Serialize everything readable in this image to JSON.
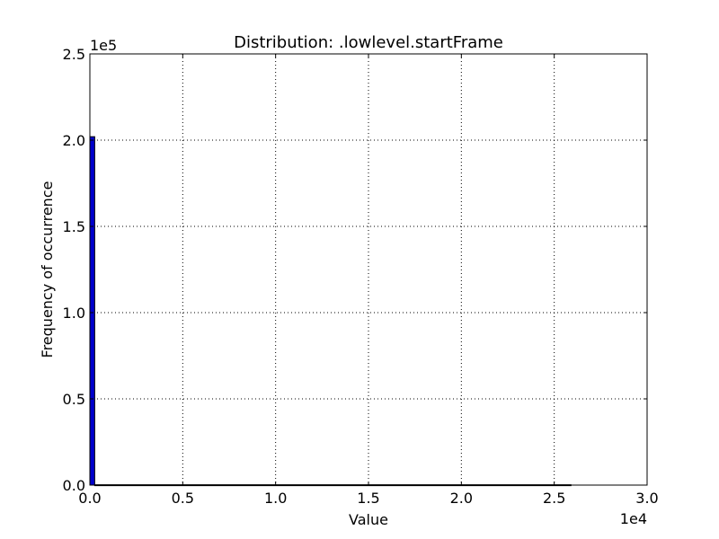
{
  "chart_data": {
    "type": "bar",
    "title": "Distribution: .lowlevel.startFrame",
    "xlabel": "Value",
    "ylabel": "Frequency of occurrence",
    "x_tick_labels": [
      "0.0",
      "0.5",
      "1.0",
      "1.5",
      "2.0",
      "2.5",
      "3.0"
    ],
    "y_tick_labels": [
      "0.0",
      "0.5",
      "1.0",
      "1.5",
      "2.0",
      "2.5"
    ],
    "x_multiplier": "1e4",
    "y_multiplier": "1e5",
    "xlim": [
      0,
      30000
    ],
    "ylim": [
      0,
      250000
    ],
    "grid": true,
    "bar_color": "#0000cc",
    "bars": [
      {
        "x0": 0,
        "x1": 260,
        "value": 202000
      },
      {
        "x0": 260,
        "x1": 25900,
        "value": 200
      }
    ]
  }
}
